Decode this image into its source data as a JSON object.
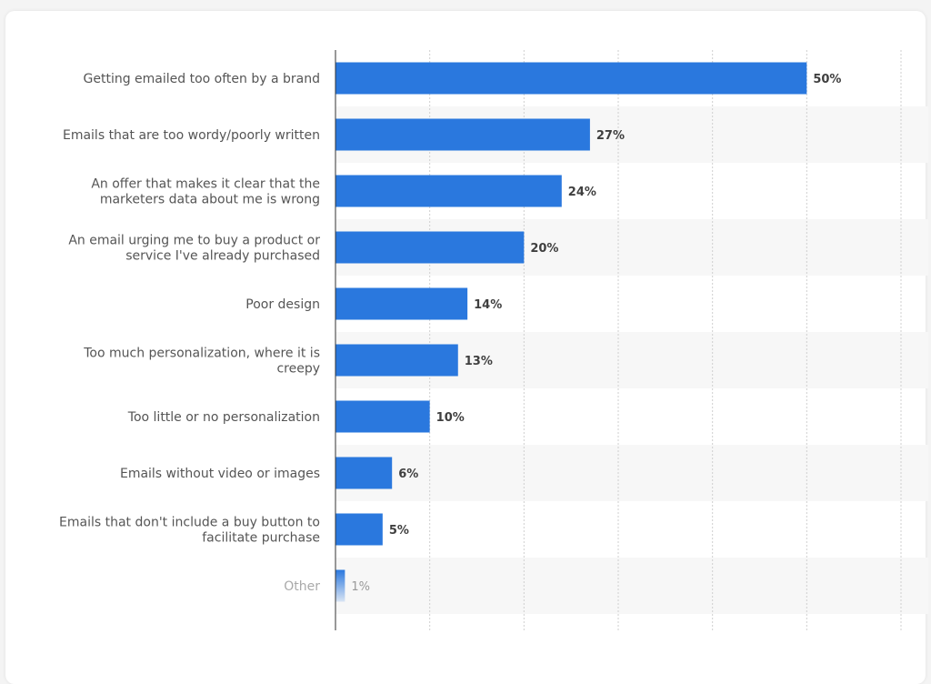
{
  "chart_data": {
    "type": "bar",
    "orientation": "horizontal",
    "categories": [
      [
        "Getting emailed too often by a brand"
      ],
      [
        "Emails that are too wordy/poorly written"
      ],
      [
        "An offer that makes it clear that the",
        "marketers data about me is wrong"
      ],
      [
        "An email urging me to buy a product or",
        "service I've already purchased"
      ],
      [
        "Poor design"
      ],
      [
        "Too much personalization, where it is",
        "creepy"
      ],
      [
        "Too little or no personalization"
      ],
      [
        "Emails without video or images"
      ],
      [
        "Emails that don't include a buy button to",
        "facilitate purchase"
      ],
      [
        "Other"
      ]
    ],
    "values": [
      50,
      27,
      24,
      20,
      14,
      13,
      10,
      6,
      5,
      1
    ],
    "value_labels": [
      "50%",
      "27%",
      "24%",
      "20%",
      "14%",
      "13%",
      "10%",
      "6%",
      "5%",
      "1%"
    ],
    "xlim": [
      0,
      60
    ],
    "grid": true,
    "colors": {
      "bar": "#2a78de",
      "band": "#f7f7f7",
      "grid": "#cfcfcf",
      "axis": "#333333"
    }
  }
}
